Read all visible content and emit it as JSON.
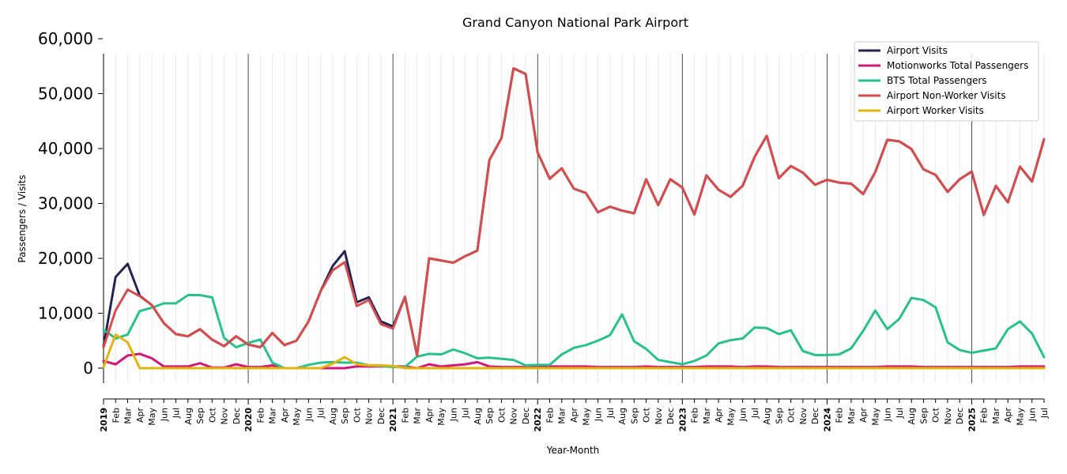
{
  "chart_data": {
    "type": "line",
    "title": "Grand Canyon National Park Airport",
    "xlabel": "Year-Month",
    "ylabel": "Passengers / Visits",
    "ylim": [
      -3000,
      60000
    ],
    "yticks": [
      0,
      10000,
      20000,
      30000,
      40000,
      50000,
      60000
    ],
    "ytick_labels": [
      "0",
      "10,000",
      "20,000",
      "30,000",
      "40,000",
      "50,000",
      "60,000"
    ],
    "grid": "vertical monthly lines, darker lines at year boundaries",
    "legend_position": "top-right",
    "categories": [
      "2019",
      "Feb",
      "Mar",
      "Apr",
      "May",
      "Jun",
      "Jul",
      "Aug",
      "Sep",
      "Oct",
      "Nov",
      "Dec",
      "2020",
      "Feb",
      "Mar",
      "Apr",
      "May",
      "Jun",
      "Jul",
      "Aug",
      "Sep",
      "Oct",
      "Nov",
      "Dec",
      "2021",
      "Feb",
      "Mar",
      "Apr",
      "May",
      "Jun",
      "Jul",
      "Aug",
      "Sep",
      "Oct",
      "Nov",
      "Dec",
      "2022",
      "Feb",
      "Mar",
      "Apr",
      "May",
      "Jun",
      "Jul",
      "Aug",
      "Sep",
      "Oct",
      "Nov",
      "Dec",
      "2023",
      "Feb",
      "Mar",
      "Apr",
      "May",
      "Jun",
      "Jul",
      "Aug",
      "Sep",
      "Oct",
      "Nov",
      "Dec",
      "2024",
      "Feb",
      "Mar",
      "Apr",
      "May",
      "Jun",
      "Jul",
      "Aug",
      "Sep",
      "Oct",
      "Nov",
      "Dec",
      "2025",
      "Feb",
      "Mar",
      "Apr",
      "May",
      "Jun",
      "Jul"
    ],
    "year_labels": [
      "2019",
      "2020",
      "2021",
      "2022",
      "2023",
      "2024",
      "2025"
    ],
    "series": [
      {
        "name": "Airport Visits",
        "color": "#232355",
        "values": [
          4000,
          16600,
          19000,
          13200,
          11500,
          8200,
          6200,
          5800,
          7100,
          5200,
          4000,
          5800,
          4300,
          3800,
          6400,
          4200,
          5000,
          8500,
          14000,
          18600,
          21300,
          12000,
          12900,
          8500,
          7600,
          13000,
          2300,
          20000,
          19600,
          19200,
          20400,
          21400,
          37900,
          41900,
          54600,
          53600,
          39300,
          34500,
          36400,
          32700,
          31900,
          28400,
          29400,
          28700,
          28200,
          34400,
          29700,
          34400,
          32900,
          28000,
          35100,
          32500,
          31200,
          33200,
          38500,
          42300,
          34600,
          36800,
          35600,
          33400,
          34300,
          33800,
          33600,
          31700,
          35700,
          41600,
          41300,
          39900,
          36200,
          35200,
          32100,
          34400,
          35800,
          27900,
          33200,
          30200,
          36700,
          34000,
          41700
        ]
      },
      {
        "name": "Motionworks Total Passengers",
        "color": "#d4177f",
        "values": [
          1300,
          700,
          2300,
          2600,
          1800,
          300,
          300,
          300,
          900,
          100,
          100,
          700,
          200,
          200,
          500,
          0,
          0,
          0,
          0,
          0,
          0,
          300,
          300,
          300,
          300,
          300,
          0,
          700,
          300,
          500,
          700,
          1100,
          300,
          200,
          200,
          200,
          200,
          300,
          300,
          300,
          300,
          200,
          200,
          200,
          200,
          300,
          200,
          200,
          200,
          200,
          300,
          300,
          300,
          200,
          300,
          300,
          200,
          200,
          200,
          200,
          200,
          200,
          200,
          200,
          200,
          300,
          300,
          300,
          200,
          200,
          200,
          200,
          200,
          200,
          200,
          200,
          300,
          300,
          300
        ]
      },
      {
        "name": "BTS Total Passengers",
        "color": "#27c18b",
        "values": [
          7000,
          5400,
          6100,
          10400,
          11000,
          11800,
          11800,
          13300,
          13300,
          12900,
          5500,
          3800,
          4600,
          5200,
          1000,
          0,
          0,
          600,
          1000,
          1100,
          1000,
          1000,
          500,
          400,
          200,
          200,
          2100,
          2600,
          2500,
          3400,
          2700,
          1800,
          1900,
          1700,
          1500,
          500,
          600,
          600,
          2500,
          3700,
          4200,
          5000,
          6000,
          9800,
          4900,
          3500,
          1500,
          1100,
          700,
          1300,
          2300,
          4500,
          5100,
          5400,
          7400,
          7300,
          6200,
          6900,
          3100,
          2400,
          2400,
          2500,
          3600,
          6800,
          10500,
          7100,
          9000,
          12800,
          12400,
          11100,
          4700,
          3300,
          2800,
          3200,
          3600,
          7100,
          8500,
          6300,
          2000
        ]
      },
      {
        "name": "Airport Non-Worker Visits",
        "color": "#d84c4c",
        "values": [
          3800,
          10500,
          14300,
          13100,
          11500,
          8200,
          6200,
          5800,
          7100,
          5200,
          4000,
          5800,
          4300,
          3800,
          6400,
          4200,
          5000,
          8500,
          14000,
          17800,
          19300,
          11300,
          12400,
          8000,
          7200,
          13000,
          2300,
          20000,
          19600,
          19200,
          20400,
          21400,
          37900,
          41900,
          54600,
          53600,
          39300,
          34500,
          36400,
          32700,
          31900,
          28400,
          29400,
          28700,
          28200,
          34400,
          29700,
          34400,
          32900,
          28000,
          35100,
          32500,
          31200,
          33200,
          38500,
          42300,
          34600,
          36800,
          35600,
          33400,
          34300,
          33800,
          33600,
          31700,
          35700,
          41600,
          41300,
          39900,
          36200,
          35200,
          32100,
          34400,
          35800,
          27900,
          33200,
          30200,
          36700,
          34000,
          41700
        ]
      },
      {
        "name": "Airport Worker Visits",
        "color": "#e3b40c",
        "values": [
          200,
          6100,
          4700,
          0,
          0,
          0,
          0,
          0,
          0,
          0,
          0,
          0,
          0,
          0,
          0,
          0,
          0,
          0,
          0,
          800,
          2000,
          700,
          500,
          500,
          400,
          0,
          0,
          0,
          0,
          0,
          0,
          0,
          0,
          0,
          0,
          0,
          0,
          0,
          0,
          0,
          0,
          0,
          0,
          0,
          0,
          0,
          0,
          0,
          0,
          0,
          0,
          0,
          0,
          0,
          0,
          0,
          0,
          0,
          0,
          0,
          0,
          0,
          0,
          0,
          0,
          0,
          0,
          0,
          0,
          0,
          0,
          0,
          0,
          0,
          0,
          0,
          0,
          0,
          0
        ]
      }
    ]
  }
}
